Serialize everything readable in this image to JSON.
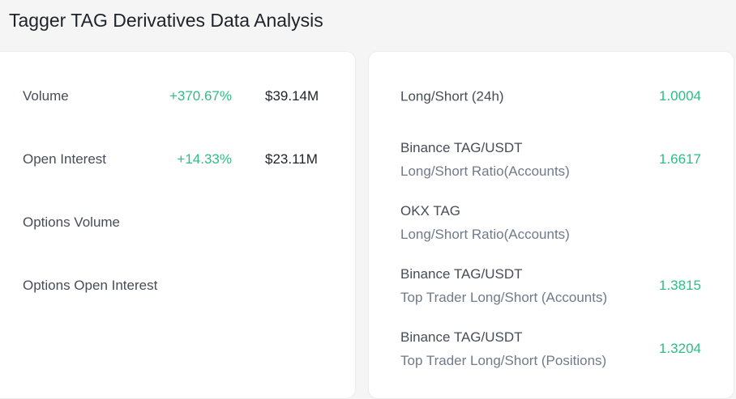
{
  "page": {
    "title": "Tagger TAG Derivatives Data Analysis"
  },
  "colors": {
    "positive": "#2ebd85",
    "text_primary": "#1e2329",
    "text_secondary": "#707a8a",
    "card_background": "#ffffff",
    "page_background": "#f5f5f5"
  },
  "derivatives": {
    "rows": [
      {
        "label": "Volume",
        "change": "+370.67%",
        "amount": "$39.14M"
      },
      {
        "label": "Open Interest",
        "change": "+14.33%",
        "amount": "$23.11M"
      },
      {
        "label": "Options Volume",
        "change": "",
        "amount": ""
      },
      {
        "label": "Options Open Interest",
        "change": "",
        "amount": ""
      }
    ]
  },
  "ratios": {
    "rows": [
      {
        "label": "Long/Short (24h)",
        "sublabel": "",
        "value": "1.0004"
      },
      {
        "label": "Binance TAG/USDT",
        "sublabel": "Long/Short Ratio(Accounts)",
        "value": "1.6617"
      },
      {
        "label": "OKX TAG",
        "sublabel": "Long/Short Ratio(Accounts)",
        "value": ""
      },
      {
        "label": "Binance TAG/USDT",
        "sublabel": "Top Trader Long/Short (Accounts)",
        "value": "1.3815"
      },
      {
        "label": "Binance TAG/USDT",
        "sublabel": "Top Trader Long/Short (Positions)",
        "value": "1.3204"
      }
    ]
  }
}
